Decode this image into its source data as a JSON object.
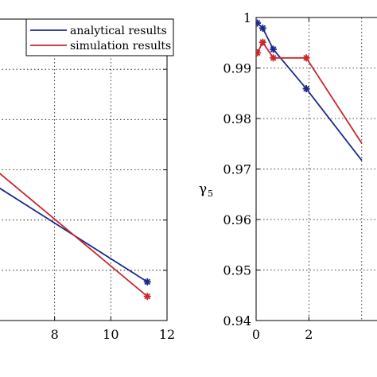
{
  "chart_data": [
    {
      "type": "line",
      "xlim": [
        6,
        12
      ],
      "ylim": [
        0,
        6
      ],
      "xticks": [
        "8",
        "10",
        "12"
      ],
      "grid": true,
      "legend": {
        "placement": "top-right",
        "entries": [
          {
            "label": "analytical results",
            "color": "#1c2a8c"
          },
          {
            "label": "simulation results",
            "color": "#c8282d"
          }
        ]
      },
      "series": [
        {
          "name": "analytical results",
          "color": "#1c2a8c",
          "x": [
            6.0,
            11.3
          ],
          "y": [
            2.65,
            0.77
          ]
        },
        {
          "name": "simulation results",
          "color": "#c8282d",
          "x": [
            6.0,
            11.3
          ],
          "y": [
            2.95,
            0.48
          ]
        }
      ]
    },
    {
      "type": "line",
      "xlim": [
        0,
        5
      ],
      "ylim": [
        0.94,
        1.0
      ],
      "xticks": [
        "0",
        "2"
      ],
      "yticks": [
        "0.94",
        "0.95",
        "0.96",
        "0.97",
        "0.98",
        "0.99",
        "1"
      ],
      "ylabel": "γ",
      "ylabel_subscript": "5",
      "grid": true,
      "series": [
        {
          "name": "analytical results",
          "color": "#1c2a8c",
          "x": [
            0.05,
            0.25,
            0.65,
            1.9,
            4.0
          ],
          "y": [
            0.9989,
            0.9979,
            0.9937,
            0.9859,
            0.9717
          ]
        },
        {
          "name": "simulation results",
          "color": "#c8282d",
          "x": [
            0.05,
            0.25,
            0.65,
            1.9,
            4.0
          ],
          "y": [
            0.993,
            0.9951,
            0.992,
            0.992,
            0.9751
          ]
        }
      ]
    }
  ]
}
